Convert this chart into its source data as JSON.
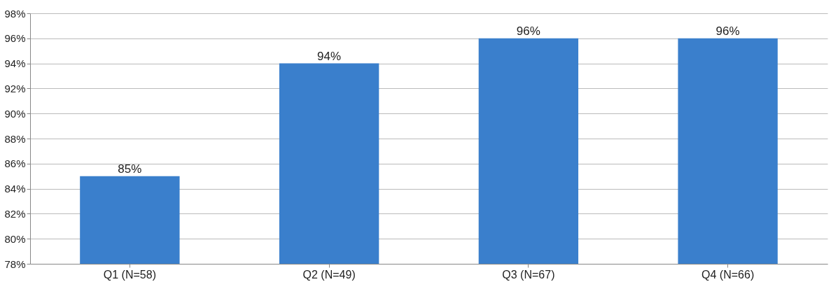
{
  "chart_data": {
    "type": "bar",
    "categories": [
      "Q1 (N=58)",
      "Q2 (N=49)",
      "Q3 (N=67)",
      "Q4 (N=66)"
    ],
    "values": [
      85,
      94,
      96,
      96
    ],
    "color": "#3a7fcc",
    "value_labels": [
      "85%",
      "94%",
      "96%",
      "96%"
    ],
    "ylim": [
      78,
      98
    ],
    "yticks": [
      {
        "value": 78,
        "label": "78%"
      },
      {
        "value": 80,
        "label": "80%"
      },
      {
        "value": 82,
        "label": "82%"
      },
      {
        "value": 84,
        "label": "84%"
      },
      {
        "value": 86,
        "label": "86%"
      },
      {
        "value": 88,
        "label": "88%"
      },
      {
        "value": 90,
        "label": "90%"
      },
      {
        "value": 92,
        "label": "92%"
      },
      {
        "value": 94,
        "label": "94%"
      },
      {
        "value": 96,
        "label": "96%"
      },
      {
        "value": 98,
        "label": "98%"
      }
    ],
    "grid": "y"
  }
}
